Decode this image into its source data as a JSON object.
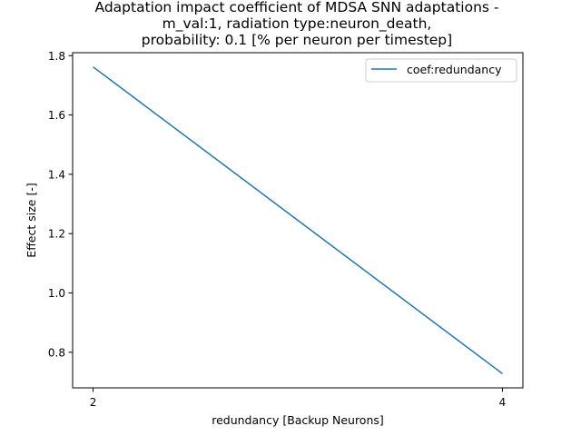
{
  "chart_data": {
    "type": "line",
    "title_lines": [
      "Adaptation impact coefficient of MDSA SNN adaptations -",
      "m_val:1, radiation type:neuron_death,",
      "probability: 0.1 [% per neuron per timestep]"
    ],
    "xlabel": "redundancy [Backup Neurons]",
    "ylabel": "Effect size [-]",
    "x_ticks": [
      2,
      4
    ],
    "x_tick_labels": [
      "2",
      "4"
    ],
    "y_ticks": [
      0.8,
      1.0,
      1.2,
      1.4,
      1.6,
      1.8
    ],
    "y_tick_labels": [
      "0.8",
      "1.0",
      "1.2",
      "1.4",
      "1.6",
      "1.8"
    ],
    "xlim": [
      1.9,
      4.1
    ],
    "ylim": [
      0.68,
      1.81
    ],
    "grid": false,
    "legend_position": "top-right",
    "series": [
      {
        "name": "coef:redundancy",
        "color": "#1f77b4",
        "x": [
          2,
          4
        ],
        "y": [
          1.762,
          0.728
        ]
      }
    ]
  }
}
